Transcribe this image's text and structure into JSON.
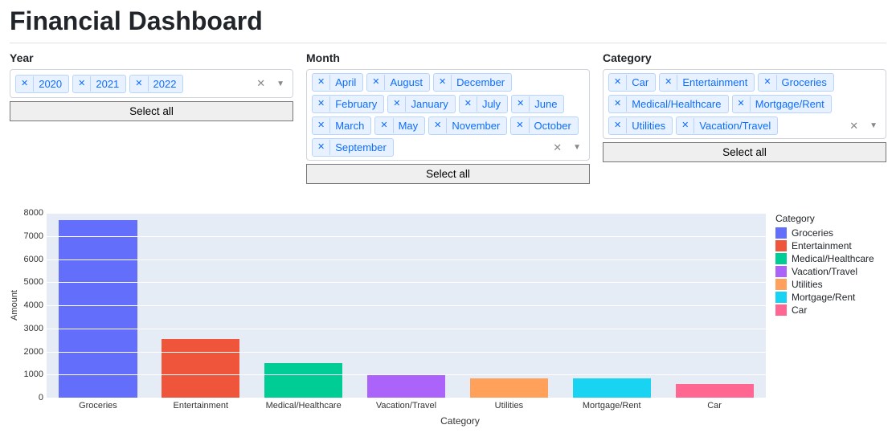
{
  "page_title": "Financial Dashboard",
  "filters": {
    "year": {
      "label": "Year",
      "options": [
        "2020",
        "2021",
        "2022"
      ],
      "select_all_label": "Select all"
    },
    "month": {
      "label": "Month",
      "options": [
        "April",
        "August",
        "December",
        "February",
        "January",
        "July",
        "June",
        "March",
        "May",
        "November",
        "October",
        "September"
      ],
      "select_all_label": "Select all"
    },
    "category": {
      "label": "Category",
      "options": [
        "Car",
        "Entertainment",
        "Groceries",
        "Medical/Healthcare",
        "Mortgage/Rent",
        "Utilities",
        "Vacation/Travel"
      ],
      "select_all_label": "Select all"
    },
    "tag_style": {
      "bg": "#e7f1ff",
      "border": "#b6d4fe",
      "text": "#0d6efd"
    }
  },
  "chart": {
    "type": "bar",
    "background_color": "#e5ecf6",
    "grid_color": "#ffffff",
    "ylabel": "Amount",
    "xlabel": "Category",
    "ylim": [
      0,
      8000
    ],
    "ytick_step": 1000,
    "yticks": [
      0,
      1000,
      2000,
      3000,
      4000,
      5000,
      6000,
      7000,
      8000
    ],
    "bar_width": 0.76,
    "legend_title": "Category",
    "label_fontsize": 11,
    "categories": [
      "Groceries",
      "Entertainment",
      "Medical/Healthcare",
      "Vacation/Travel",
      "Utilities",
      "Mortgage/Rent",
      "Car"
    ],
    "values": [
      7700,
      2550,
      1500,
      1000,
      850,
      830,
      600
    ],
    "bar_colors": [
      "#636efa",
      "#ef553b",
      "#00cc96",
      "#ab63fa",
      "#ffa15a",
      "#19d3f3",
      "#ff6692"
    ]
  }
}
